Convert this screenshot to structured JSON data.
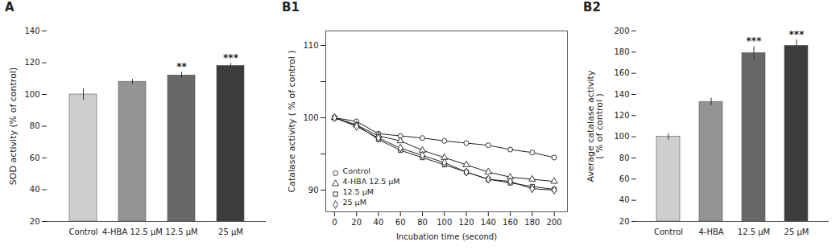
{
  "chart_data": [
    {
      "type": "bar",
      "title": "A",
      "categories": [
        "Control",
        "4-HBA 12.5 μM",
        "12.5 μM",
        "25 μM"
      ],
      "values": [
        100,
        108,
        112,
        118
      ],
      "errors": [
        3.5,
        1.5,
        2.0,
        1.5
      ],
      "colors": [
        "#cecece",
        "#949494",
        "#686868",
        "#3c3c3c"
      ],
      "ylabel": "SOD activity (% of control)",
      "ylim": [
        20,
        140
      ],
      "yticks": [
        20,
        40,
        60,
        80,
        100,
        120,
        140
      ],
      "annotations": [
        {
          "category": "12.5 μM",
          "text": "**"
        },
        {
          "category": "25 μM",
          "text": "***"
        }
      ]
    },
    {
      "type": "line",
      "title": "B1",
      "xlabel": "Incubation time (second)",
      "ylabel": "Catalase activity ( % of control )",
      "x": [
        0,
        20,
        40,
        60,
        80,
        100,
        120,
        140,
        160,
        180,
        200
      ],
      "series": [
        {
          "name": "Control",
          "color": "#222222",
          "marker": "circle",
          "values": [
            100,
            99.5,
            97.8,
            97.5,
            97.2,
            96.8,
            96.5,
            96.2,
            95.6,
            95.2,
            94.5
          ]
        },
        {
          "name": "4-HBA 12.5 μM",
          "color": "#222222",
          "marker": "triangle",
          "values": [
            100,
            99.0,
            97.5,
            96.8,
            95.5,
            94.5,
            93.5,
            92.5,
            91.8,
            91.5,
            91.2
          ]
        },
        {
          "name": "12.5 μM",
          "color": "#222222",
          "marker": "square",
          "values": [
            100,
            99.0,
            97.0,
            95.5,
            94.5,
            93.5,
            92.5,
            91.5,
            91.0,
            90.5,
            90.1
          ]
        },
        {
          "name": "25 μM",
          "color": "#222222",
          "marker": "diamond",
          "values": [
            100,
            98.8,
            97.2,
            95.8,
            94.8,
            93.8,
            92.5,
            91.5,
            91.2,
            90.2,
            90.0
          ]
        }
      ],
      "xlim": [
        -8,
        212
      ],
      "xticks": [
        0,
        20,
        40,
        60,
        80,
        100,
        120,
        140,
        160,
        180,
        200
      ],
      "ylim": [
        87,
        112
      ],
      "yticks": [
        90,
        {
          "value": 95,
          "label": null
        },
        100,
        {
          "value": 105,
          "label": null
        },
        110
      ],
      "legend": "lower left"
    },
    {
      "type": "bar",
      "title": "B2",
      "categories": [
        "Control",
        "4-HBA",
        "12.5 μM",
        "25 μM"
      ],
      "values": [
        100,
        133,
        179,
        186
      ],
      "errors": [
        3.0,
        3.5,
        6.0,
        5.5
      ],
      "colors": [
        "#cecece",
        "#949494",
        "#686868",
        "#3c3c3c"
      ],
      "ylabel": "Average catalase activity\n( % of control )",
      "ylim": [
        20,
        200
      ],
      "yticks": [
        20,
        40,
        60,
        80,
        100,
        120,
        140,
        160,
        180,
        200
      ],
      "annotations": [
        {
          "category": "12.5 μM",
          "text": "***"
        },
        {
          "category": "25 μM",
          "text": "***"
        }
      ]
    }
  ]
}
